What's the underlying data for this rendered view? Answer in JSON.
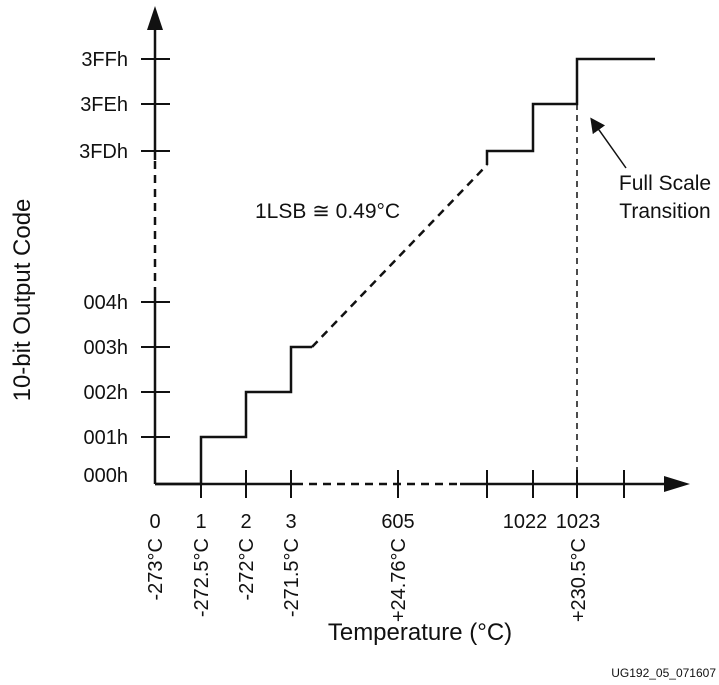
{
  "diagram": {
    "y_axis_label": "10-bit Output Code",
    "x_axis_label": "Temperature (°C)",
    "y_tick_labels": [
      "000h",
      "001h",
      "002h",
      "003h",
      "004h",
      "3FDh",
      "3FEh",
      "3FFh"
    ],
    "x_code_labels": [
      "0",
      "1",
      "2",
      "3",
      "605",
      "1022",
      "1023"
    ],
    "x_temp_labels": [
      "-273°C",
      "-272.5°C",
      "-272°C",
      "-271.5°C",
      "+24.76°C",
      "+230.5°C"
    ],
    "lsb_note": "1LSB ≅ 0.49°C",
    "full_scale_line1": "Full Scale",
    "full_scale_line2": "Transition",
    "figure_id": "UG192_05_071607"
  }
}
